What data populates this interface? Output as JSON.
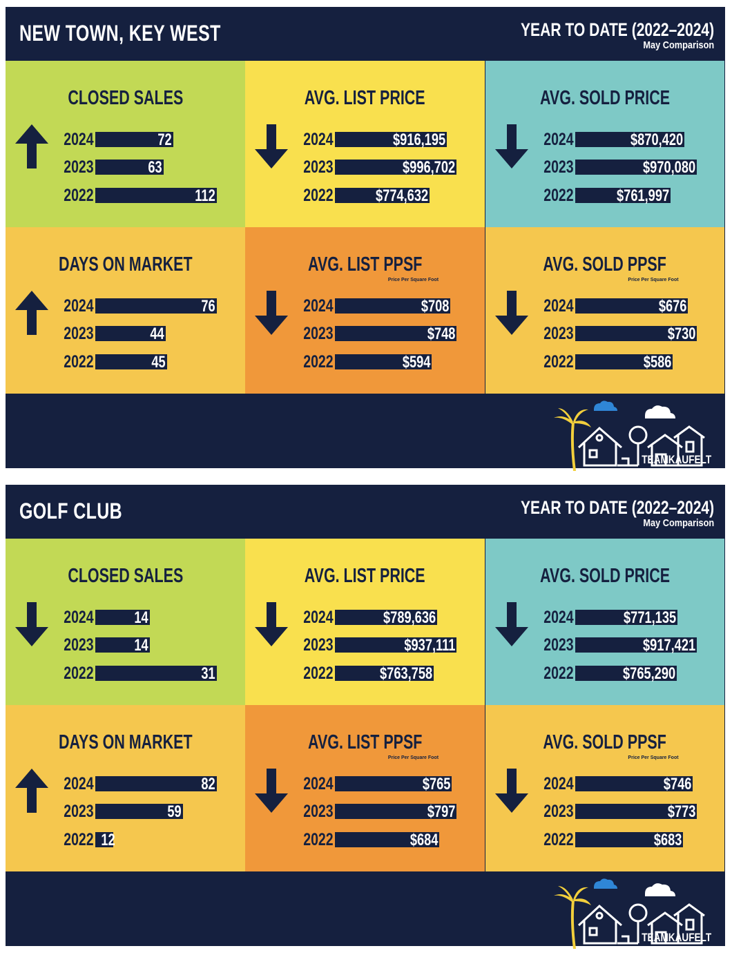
{
  "colors": {
    "navy": "#15203f",
    "green": "#c2d955",
    "yellow": "#f9e04e",
    "teal": "#7ec9c6",
    "amber": "#f5c74e",
    "orange": "#f0983a",
    "cloud_blue": "#2f86d6"
  },
  "brand": "TEAMKAUFELT",
  "chart_data": [
    {
      "type": "bar",
      "region": "NEW TOWN, KEY WEST",
      "period": "YEAR TO DATE (2022–2024)",
      "period_sub": "May Comparison",
      "metrics": [
        {
          "title": "CLOSED SALES",
          "trend": "up",
          "color": "green",
          "years": [
            "2024",
            "2023",
            "2022"
          ],
          "values": [
            72,
            63,
            112
          ],
          "labels": [
            "72",
            "63",
            "112"
          ]
        },
        {
          "title": "AVG. LIST PRICE",
          "trend": "down",
          "color": "yellow",
          "years": [
            "2024",
            "2023",
            "2022"
          ],
          "values": [
            916195,
            996702,
            774632
          ],
          "labels": [
            "$916,195",
            "$996,702",
            "$774,632"
          ]
        },
        {
          "title": "AVG. SOLD PRICE",
          "trend": "down",
          "color": "teal",
          "years": [
            "2024",
            "2023",
            "2022"
          ],
          "values": [
            870420,
            970080,
            761997
          ],
          "labels": [
            "$870,420",
            "$970,080",
            "$761,997"
          ]
        },
        {
          "title": "DAYS ON MARKET",
          "trend": "up",
          "color": "amber",
          "years": [
            "2024",
            "2023",
            "2022"
          ],
          "values": [
            76,
            44,
            45
          ],
          "labels": [
            "76",
            "44",
            "45"
          ]
        },
        {
          "title": "AVG. LIST PPSF",
          "note": "Price Per Square Foot",
          "trend": "down",
          "color": "orange",
          "years": [
            "2024",
            "2023",
            "2022"
          ],
          "values": [
            708,
            748,
            594
          ],
          "labels": [
            "$708",
            "$748",
            "$594"
          ]
        },
        {
          "title": "AVG. SOLD PPSF",
          "note": "Price Per Square Foot",
          "trend": "down",
          "color": "amber",
          "years": [
            "2024",
            "2023",
            "2022"
          ],
          "values": [
            676,
            730,
            586
          ],
          "labels": [
            "$676",
            "$730",
            "$586"
          ]
        }
      ]
    },
    {
      "type": "bar",
      "region": "GOLF CLUB",
      "period": "YEAR TO DATE (2022–2024)",
      "period_sub": "May Comparison",
      "metrics": [
        {
          "title": "CLOSED SALES",
          "trend": "down",
          "color": "green",
          "years": [
            "2024",
            "2023",
            "2022"
          ],
          "values": [
            14,
            14,
            31
          ],
          "labels": [
            "14",
            "14",
            "31"
          ]
        },
        {
          "title": "AVG. LIST PRICE",
          "trend": "down",
          "color": "yellow",
          "years": [
            "2024",
            "2023",
            "2022"
          ],
          "values": [
            789636,
            937111,
            763758
          ],
          "labels": [
            "$789,636",
            "$937,111",
            "$763,758"
          ]
        },
        {
          "title": "AVG. SOLD PRICE",
          "trend": "down",
          "color": "teal",
          "years": [
            "2024",
            "2023",
            "2022"
          ],
          "values": [
            771135,
            917421,
            765290
          ],
          "labels": [
            "$771,135",
            "$917,421",
            "$765,290"
          ]
        },
        {
          "title": "DAYS ON MARKET",
          "trend": "up",
          "color": "amber",
          "years": [
            "2024",
            "2023",
            "2022"
          ],
          "values": [
            82,
            59,
            12
          ],
          "labels": [
            "82",
            "59",
            "12"
          ]
        },
        {
          "title": "AVG. LIST PPSF",
          "note": "Price Per Square Foot",
          "trend": "down",
          "color": "orange",
          "years": [
            "2024",
            "2023",
            "2022"
          ],
          "values": [
            765,
            797,
            684
          ],
          "labels": [
            "$765",
            "$797",
            "$684"
          ]
        },
        {
          "title": "AVG. SOLD PPSF",
          "note": "Price Per Square Foot",
          "trend": "down",
          "color": "amber",
          "years": [
            "2024",
            "2023",
            "2022"
          ],
          "values": [
            746,
            773,
            683
          ],
          "labels": [
            "$746",
            "$773",
            "$683"
          ]
        }
      ]
    }
  ]
}
